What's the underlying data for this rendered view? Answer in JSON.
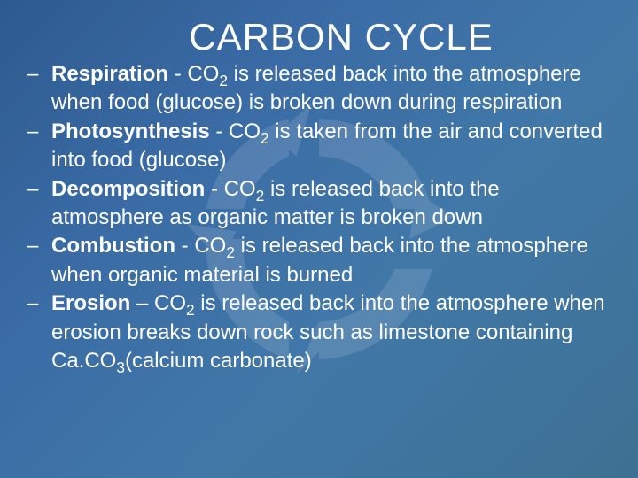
{
  "title": "CARBON CYCLE",
  "bullets": [
    {
      "term": "Respiration",
      "sep": " - ",
      "text_before": "CO",
      "sub": "2",
      "text_after": " is released back into the atmosphere when food (glucose) is broken down during respiration"
    },
    {
      "term": "Photosynthesis",
      "sep": " - ",
      "text_before": "CO",
      "sub": "2",
      "text_after": " is taken from the air and converted into food (glucose)"
    },
    {
      "term": "Decomposition",
      "sep": " - ",
      "text_before": "CO",
      "sub": "2",
      "text_after": " is released back into the atmosphere as organic matter is broken down"
    },
    {
      "term": " Combustion",
      "sep": " - ",
      "text_before": "CO",
      "sub": "2",
      "text_after": " is released back into the atmosphere when organic material is burned"
    },
    {
      "term": " Erosion",
      "sep": " – ",
      "text_before": "CO",
      "sub": "2",
      "text_after": " is released back into the atmosphere when erosion breaks down rock such as  limestone containing Ca.CO",
      "sub2": "3",
      "text_after2": "(calcium carbonate)"
    }
  ],
  "style": {
    "background_gradient": [
      "#2e5b8f",
      "#3a6ba5",
      "#4178a8",
      "#3d7092"
    ],
    "text_color": "#ffffff",
    "title_fontsize": 42,
    "body_fontsize": 24,
    "watermark_opacity": 0.12,
    "watermark_color": "#ffffff"
  }
}
